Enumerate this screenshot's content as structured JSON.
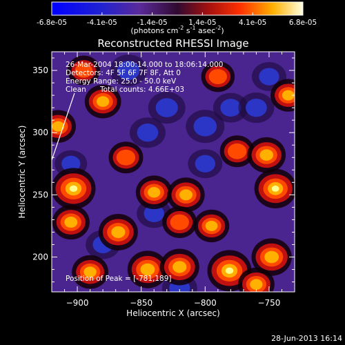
{
  "chart_data": {
    "type": "heatmap",
    "title": "Reconstructed RHESSI Image",
    "xlabel": "Heliocentric X (arcsec)",
    "ylabel": "Heliocentric Y (arcsec)",
    "x_ticks": [
      -900,
      -850,
      -800,
      -750
    ],
    "y_ticks": [
      200,
      250,
      300,
      350
    ],
    "xlim": [
      -920,
      -730
    ],
    "ylim": [
      172,
      365
    ],
    "colorbar": {
      "ticks": [
        "-6.8e-05",
        "-4.1e-05",
        "-1.4e-05",
        "1.4e-05",
        "4.1e-05",
        "6.8e-05"
      ],
      "unit_main": "(photons cm",
      "unit_exp1": "-2",
      "unit_mid": " s",
      "unit_exp2": "-1",
      "unit_end": " asec",
      "unit_exp3": "-2",
      "unit_close": ")",
      "range": [
        -6.8e-05,
        6.8e-05
      ]
    },
    "annotations": [
      "26-Mar-2004 18:00:14.000 to 18:06:14.000",
      "Detectors: 4F 5F 6F 7F 8F, Att 0",
      "Energy Range: 25.0 - 50.0 keV",
      "Clean",
      "Total counts: 4.66E+03"
    ],
    "peak_label": "Position of Peak = [-781,189]",
    "peak": {
      "x": -781,
      "y": 189
    },
    "hot_spots": [
      {
        "x": -903,
        "y": 255,
        "v": 1.0
      },
      {
        "x": -915,
        "y": 305,
        "v": 0.55
      },
      {
        "x": -880,
        "y": 325,
        "v": 0.6
      },
      {
        "x": -862,
        "y": 280,
        "v": 0.5
      },
      {
        "x": -868,
        "y": 220,
        "v": 0.75
      },
      {
        "x": -840,
        "y": 252,
        "v": 0.6
      },
      {
        "x": -815,
        "y": 250,
        "v": 0.65
      },
      {
        "x": -820,
        "y": 228,
        "v": 0.5
      },
      {
        "x": -795,
        "y": 225,
        "v": 0.55
      },
      {
        "x": -775,
        "y": 285,
        "v": 0.5
      },
      {
        "x": -752,
        "y": 282,
        "v": 0.7
      },
      {
        "x": -745,
        "y": 255,
        "v": 0.9
      },
      {
        "x": -735,
        "y": 330,
        "v": 0.55
      },
      {
        "x": -748,
        "y": 200,
        "v": 0.8
      },
      {
        "x": -781,
        "y": 189,
        "v": 1.0
      },
      {
        "x": -845,
        "y": 190,
        "v": 0.8
      },
      {
        "x": -820,
        "y": 192,
        "v": 0.75
      },
      {
        "x": -890,
        "y": 188,
        "v": 0.6
      },
      {
        "x": -760,
        "y": 178,
        "v": 0.6
      },
      {
        "x": -790,
        "y": 345,
        "v": 0.45
      },
      {
        "x": -895,
        "y": 350,
        "v": 0.4
      },
      {
        "x": -905,
        "y": 228,
        "v": 0.65
      }
    ],
    "cold_spots": [
      {
        "x": -830,
        "y": 320,
        "v": 0.7
      },
      {
        "x": -800,
        "y": 305,
        "v": 0.8
      },
      {
        "x": -780,
        "y": 320,
        "v": 0.55
      },
      {
        "x": -845,
        "y": 300,
        "v": 0.6
      },
      {
        "x": -860,
        "y": 350,
        "v": 0.7
      },
      {
        "x": -840,
        "y": 235,
        "v": 0.5
      },
      {
        "x": -880,
        "y": 210,
        "v": 0.5
      },
      {
        "x": -800,
        "y": 275,
        "v": 0.5
      },
      {
        "x": -760,
        "y": 320,
        "v": 0.6
      },
      {
        "x": -820,
        "y": 175,
        "v": 0.55
      },
      {
        "x": -750,
        "y": 345,
        "v": 0.5
      },
      {
        "x": -905,
        "y": 275,
        "v": 0.35
      }
    ]
  },
  "footer": {
    "date": "28-Jun-2013 16:14"
  }
}
